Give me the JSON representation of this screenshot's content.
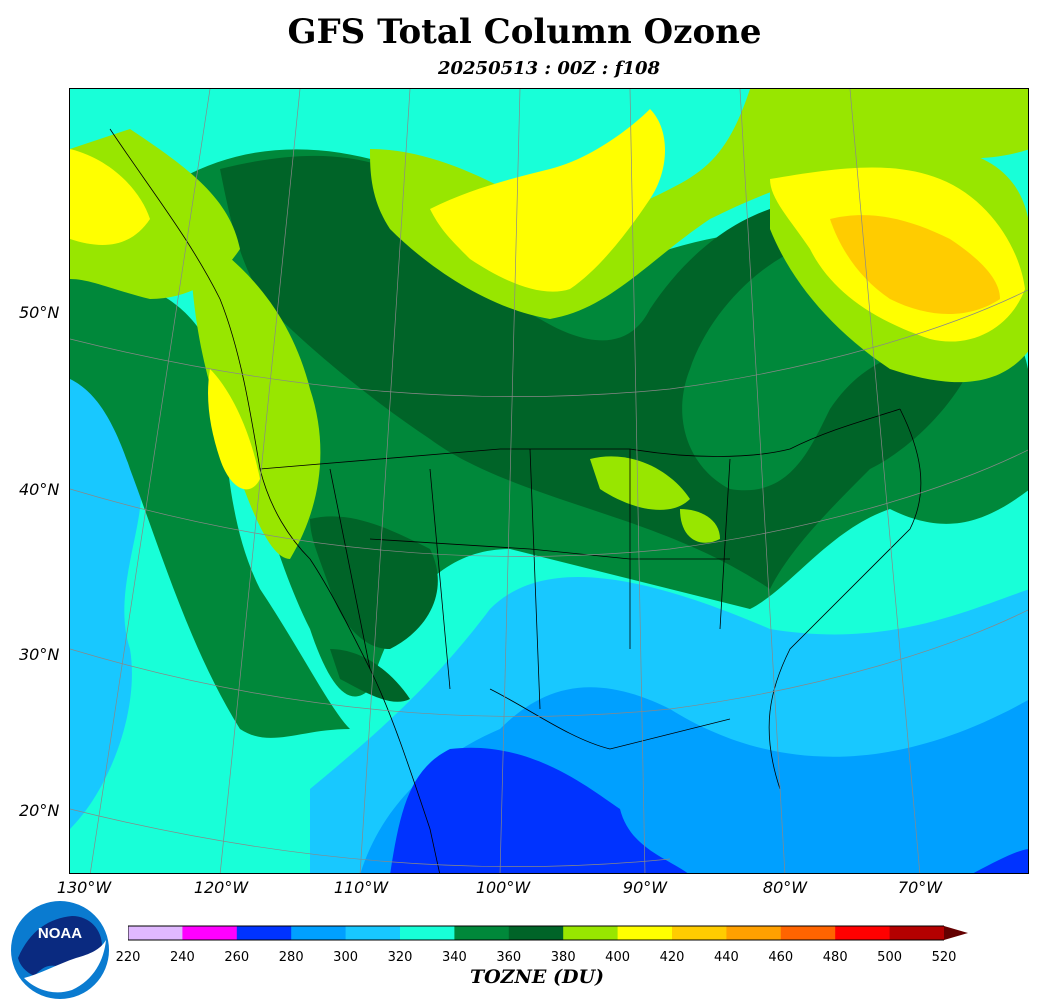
{
  "title": "GFS Total Column Ozone",
  "subtitle": "20250513 : 00Z : f108",
  "latitude_labels": [
    "50°N",
    "40°N",
    "30°N",
    "20°N"
  ],
  "longitude_labels": [
    "130°W",
    "120°W",
    "110°W",
    "100°W",
    "90°W",
    "80°W",
    "70°W"
  ],
  "colorbar": {
    "label": "TOZNE (DU)",
    "ticks": [
      "220",
      "240",
      "260",
      "280",
      "300",
      "320",
      "340",
      "360",
      "380",
      "400",
      "420",
      "440",
      "460",
      "480",
      "500",
      "520"
    ],
    "colors": [
      "#e0b8ff",
      "#ff00ff",
      "#0033ff",
      "#00a0ff",
      "#18c8ff",
      "#18ffd8",
      "#00883a",
      "#006428",
      "#98e600",
      "#ffff00",
      "#ffcc00",
      "#ffa000",
      "#ff6400",
      "#ff0000",
      "#b40000"
    ],
    "extend_color": "#640000"
  },
  "logo": {
    "text": "NOAA"
  }
}
